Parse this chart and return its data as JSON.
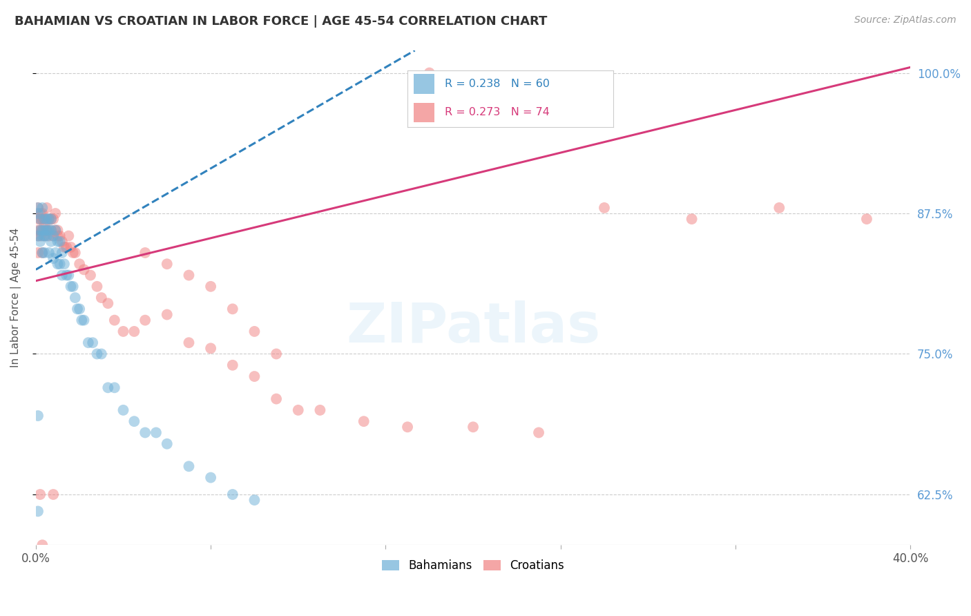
{
  "title": "BAHAMIAN VS CROATIAN IN LABOR FORCE | AGE 45-54 CORRELATION CHART",
  "source": "Source: ZipAtlas.com",
  "ylabel": "In Labor Force | Age 45-54",
  "xlim": [
    0.0,
    0.4
  ],
  "ylim": [
    0.58,
    1.02
  ],
  "yticks": [
    0.625,
    0.75,
    0.875,
    1.0
  ],
  "ytick_labels": [
    "62.5%",
    "75.0%",
    "87.5%",
    "100.0%"
  ],
  "xticks": [
    0.0,
    0.08,
    0.16,
    0.24,
    0.32,
    0.4
  ],
  "xtick_labels": [
    "0.0%",
    "",
    "",
    "",
    "",
    "40.0%"
  ],
  "bahamian_R": 0.238,
  "bahamian_N": 60,
  "croatian_R": 0.273,
  "croatian_N": 74,
  "bahamian_color": "#6baed6",
  "croatian_color": "#f08080",
  "bahamian_line_color": "#3182bd",
  "croatian_line_color": "#d63a7a",
  "background_color": "#ffffff",
  "grid_color": "#cccccc",
  "title_color": "#333333",
  "right_tick_color": "#5b9bd5",
  "bahamian_x": [
    0.001,
    0.001,
    0.001,
    0.002,
    0.002,
    0.002,
    0.003,
    0.003,
    0.003,
    0.003,
    0.004,
    0.004,
    0.004,
    0.004,
    0.005,
    0.005,
    0.005,
    0.006,
    0.006,
    0.006,
    0.007,
    0.007,
    0.007,
    0.008,
    0.008,
    0.009,
    0.009,
    0.01,
    0.01,
    0.011,
    0.011,
    0.012,
    0.012,
    0.013,
    0.014,
    0.015,
    0.016,
    0.017,
    0.018,
    0.019,
    0.02,
    0.021,
    0.022,
    0.024,
    0.026,
    0.028,
    0.03,
    0.033,
    0.036,
    0.04,
    0.045,
    0.05,
    0.055,
    0.06,
    0.07,
    0.08,
    0.09,
    0.1,
    0.001,
    0.001
  ],
  "bahamian_y": [
    0.88,
    0.855,
    0.875,
    0.87,
    0.85,
    0.86,
    0.86,
    0.84,
    0.88,
    0.855,
    0.855,
    0.87,
    0.84,
    0.86,
    0.86,
    0.87,
    0.855,
    0.84,
    0.87,
    0.86,
    0.85,
    0.86,
    0.87,
    0.835,
    0.855,
    0.84,
    0.86,
    0.83,
    0.85,
    0.83,
    0.85,
    0.82,
    0.84,
    0.83,
    0.82,
    0.82,
    0.81,
    0.81,
    0.8,
    0.79,
    0.79,
    0.78,
    0.78,
    0.76,
    0.76,
    0.75,
    0.75,
    0.72,
    0.72,
    0.7,
    0.69,
    0.68,
    0.68,
    0.67,
    0.65,
    0.64,
    0.625,
    0.62,
    0.695,
    0.61
  ],
  "croatian_x": [
    0.001,
    0.001,
    0.001,
    0.002,
    0.002,
    0.002,
    0.003,
    0.003,
    0.003,
    0.003,
    0.004,
    0.004,
    0.004,
    0.005,
    0.005,
    0.005,
    0.006,
    0.006,
    0.007,
    0.007,
    0.008,
    0.008,
    0.009,
    0.009,
    0.01,
    0.01,
    0.011,
    0.012,
    0.013,
    0.014,
    0.015,
    0.016,
    0.017,
    0.018,
    0.02,
    0.022,
    0.025,
    0.028,
    0.03,
    0.033,
    0.036,
    0.04,
    0.045,
    0.05,
    0.06,
    0.07,
    0.08,
    0.09,
    0.1,
    0.11,
    0.12,
    0.13,
    0.15,
    0.17,
    0.2,
    0.23,
    0.26,
    0.3,
    0.34,
    0.38,
    0.001,
    0.001,
    0.002,
    0.05,
    0.06,
    0.07,
    0.08,
    0.09,
    0.1,
    0.11,
    0.008,
    0.002,
    0.003,
    0.18
  ],
  "croatian_y": [
    0.87,
    0.86,
    0.88,
    0.87,
    0.855,
    0.86,
    0.87,
    0.84,
    0.86,
    0.875,
    0.865,
    0.87,
    0.855,
    0.86,
    0.88,
    0.86,
    0.87,
    0.855,
    0.87,
    0.86,
    0.855,
    0.87,
    0.86,
    0.875,
    0.855,
    0.86,
    0.855,
    0.85,
    0.845,
    0.845,
    0.855,
    0.845,
    0.84,
    0.84,
    0.83,
    0.825,
    0.82,
    0.81,
    0.8,
    0.795,
    0.78,
    0.77,
    0.77,
    0.78,
    0.785,
    0.76,
    0.755,
    0.74,
    0.73,
    0.71,
    0.7,
    0.7,
    0.69,
    0.685,
    0.685,
    0.68,
    0.88,
    0.87,
    0.88,
    0.87,
    0.855,
    0.84,
    0.875,
    0.84,
    0.83,
    0.82,
    0.81,
    0.79,
    0.77,
    0.75,
    0.625,
    0.625,
    0.58,
    1.0
  ],
  "bah_line_x0": 0.0,
  "bah_line_y0": 0.825,
  "bah_line_x1": 0.16,
  "bah_line_y1": 1.005,
  "cro_line_x0": 0.0,
  "cro_line_y0": 0.815,
  "cro_line_x1": 0.4,
  "cro_line_y1": 1.005
}
